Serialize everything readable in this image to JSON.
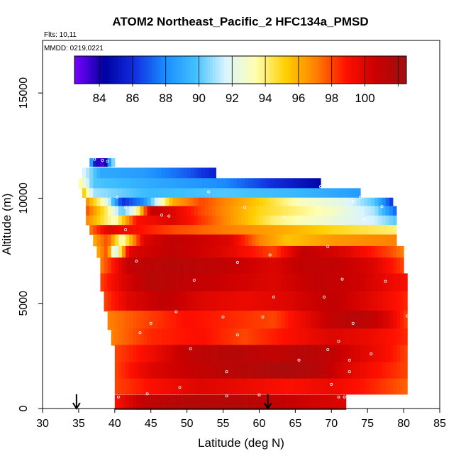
{
  "chart_data": {
    "type": "heatmap",
    "title": "ATOM2 Northeast_Pacific_2 HFC134a_PMSD",
    "notes": {
      "flights": "Flts: 10,11",
      "dates": "MMDD: 0219,0221"
    },
    "xlabel": "Latitude (deg N)",
    "ylabel": "Altitude (m)",
    "xlim": [
      30,
      85
    ],
    "ylim": [
      0,
      17500
    ],
    "x_ticks": [
      30,
      35,
      40,
      45,
      50,
      55,
      60,
      65,
      70,
      75,
      80,
      85
    ],
    "x_tick_labels": [
      "30",
      "35",
      "40",
      "45",
      "50",
      "55",
      "60",
      "65",
      "70",
      "75",
      "80",
      "85"
    ],
    "y_ticks": [
      0,
      5000,
      10000,
      15000
    ],
    "y_tick_labels": [
      "0",
      "5000",
      "10000",
      "15000"
    ],
    "colorbar": {
      "range": [
        82.5,
        102.5
      ],
      "ticks": [
        84,
        86,
        88,
        90,
        92,
        94,
        96,
        98,
        100
      ],
      "tick_labels": [
        "84",
        "86",
        "88",
        "90",
        "92",
        "94",
        "96",
        "98",
        "100"
      ],
      "colors": [
        "#7a00ff",
        "#0000a0",
        "#1030e0",
        "#1a8cff",
        "#40c0ff",
        "#d8f4ff",
        "#ffffb0",
        "#ffd000",
        "#ff8000",
        "#ff1000",
        "#c80000",
        "#a01010"
      ]
    },
    "profile_markers_latitude": [
      34.7,
      61.2
    ],
    "layers": [
      {
        "z": 11700,
        "h": 400,
        "x0": 36.5,
        "x1": 40.0,
        "pts": [
          [
            36.5,
            90
          ],
          [
            37.5,
            84
          ],
          [
            38.5,
            83
          ],
          [
            39.5,
            90
          ],
          [
            40.0,
            91
          ]
        ]
      },
      {
        "z": 11200,
        "h": 500,
        "x0": 35.5,
        "x1": 54.0,
        "pts": [
          [
            35.5,
            92
          ],
          [
            38,
            89
          ],
          [
            44,
            88.5
          ],
          [
            50,
            87
          ],
          [
            54,
            85.5
          ]
        ]
      },
      {
        "z": 10700,
        "h": 500,
        "x0": 35.0,
        "x1": 68.5,
        "pts": [
          [
            35,
            94
          ],
          [
            37,
            90
          ],
          [
            45,
            89
          ],
          [
            55,
            88
          ],
          [
            62,
            86
          ],
          [
            68.5,
            84.5
          ]
        ]
      },
      {
        "z": 10250,
        "h": 450,
        "x0": 35.5,
        "x1": 74.0,
        "pts": [
          [
            35.5,
            96
          ],
          [
            37,
            91
          ],
          [
            45,
            89.5
          ],
          [
            55,
            90
          ],
          [
            65,
            89.5
          ],
          [
            74,
            88.5
          ]
        ]
      },
      {
        "z": 9800,
        "h": 450,
        "x0": 36.0,
        "x1": 78.5,
        "pts": [
          [
            36,
            97
          ],
          [
            39,
            92
          ],
          [
            41,
            86
          ],
          [
            44,
            88
          ],
          [
            48,
            96
          ],
          [
            52,
            98
          ],
          [
            58,
            96
          ],
          [
            66,
            93
          ],
          [
            72,
            92
          ],
          [
            76,
            90
          ],
          [
            78.5,
            86
          ]
        ]
      },
      {
        "z": 9400,
        "h": 450,
        "x0": 36.0,
        "x1": 79.0,
        "pts": [
          [
            36,
            98
          ],
          [
            39,
            94
          ],
          [
            41,
            90
          ],
          [
            43,
            93
          ],
          [
            45,
            101
          ],
          [
            48,
            100
          ],
          [
            52,
            98
          ],
          [
            60,
            95
          ],
          [
            70,
            93
          ],
          [
            76,
            91
          ],
          [
            79,
            87
          ]
        ]
      },
      {
        "z": 8950,
        "h": 450,
        "x0": 36.0,
        "x1": 79.0,
        "pts": [
          [
            36,
            97
          ],
          [
            40,
            93
          ],
          [
            43,
            99
          ],
          [
            48,
            100
          ],
          [
            55,
            97
          ],
          [
            62,
            94
          ],
          [
            70,
            92.5
          ],
          [
            76,
            91.5
          ],
          [
            79,
            90
          ]
        ]
      },
      {
        "z": 8500,
        "h": 450,
        "x0": 36.5,
        "x1": 79.0,
        "pts": [
          [
            36.5,
            97
          ],
          [
            39,
            100
          ],
          [
            43,
            99
          ],
          [
            48,
            98
          ],
          [
            56,
            97
          ],
          [
            64,
            96
          ],
          [
            70,
            95
          ],
          [
            79,
            94
          ]
        ]
      },
      {
        "z": 8000,
        "h": 550,
        "x0": 37.0,
        "x1": 79.0,
        "pts": [
          [
            37,
            96
          ],
          [
            39,
            98
          ],
          [
            41,
            93
          ],
          [
            44,
            100
          ],
          [
            48,
            101
          ],
          [
            56,
            100
          ],
          [
            60,
            97
          ],
          [
            64,
            95.5
          ],
          [
            70,
            96.5
          ],
          [
            79,
            97
          ]
        ]
      },
      {
        "z": 7450,
        "h": 550,
        "x0": 37.5,
        "x1": 80.0,
        "pts": [
          [
            37.5,
            96
          ],
          [
            39,
            98
          ],
          [
            40,
            91
          ],
          [
            42,
            100
          ],
          [
            48,
            101
          ],
          [
            55,
            100
          ],
          [
            62,
            98
          ],
          [
            66,
            101
          ],
          [
            72,
            100
          ],
          [
            78,
            98
          ],
          [
            80,
            97
          ]
        ]
      },
      {
        "z": 6800,
        "h": 750,
        "x0": 38.0,
        "x1": 80.0,
        "pts": [
          [
            38,
            97
          ],
          [
            40,
            99
          ],
          [
            42,
            101
          ],
          [
            48,
            101.5
          ],
          [
            55,
            101
          ],
          [
            62,
            100
          ],
          [
            66,
            101
          ],
          [
            70,
            101
          ],
          [
            76,
            100
          ],
          [
            80,
            98
          ]
        ]
      },
      {
        "z": 6000,
        "h": 850,
        "x0": 38.0,
        "x1": 80.5,
        "pts": [
          [
            38,
            98
          ],
          [
            41,
            100
          ],
          [
            45,
            101.5
          ],
          [
            50,
            101
          ],
          [
            56,
            100.5
          ],
          [
            62,
            100
          ],
          [
            68,
            101
          ],
          [
            74,
            100.5
          ],
          [
            80.5,
            99
          ]
        ]
      },
      {
        "z": 5100,
        "h": 950,
        "x0": 38.5,
        "x1": 80.5,
        "pts": [
          [
            38.5,
            98
          ],
          [
            42,
            100
          ],
          [
            47,
            101
          ],
          [
            52,
            100
          ],
          [
            58,
            99.5
          ],
          [
            64,
            100
          ],
          [
            70,
            101
          ],
          [
            75,
            100
          ],
          [
            80.5,
            98.5
          ]
        ]
      },
      {
        "z": 4200,
        "h": 900,
        "x0": 39.0,
        "x1": 80.5,
        "pts": [
          [
            39,
            97
          ],
          [
            44,
            98
          ],
          [
            50,
            99
          ],
          [
            56,
            98.5
          ],
          [
            62,
            98
          ],
          [
            66,
            99.5
          ],
          [
            70,
            101
          ],
          [
            74,
            101.5
          ],
          [
            78,
            100
          ],
          [
            80.5,
            98
          ]
        ]
      },
      {
        "z": 3400,
        "h": 800,
        "x0": 39.5,
        "x1": 80.5,
        "pts": [
          [
            39.5,
            97
          ],
          [
            45,
            98.5
          ],
          [
            52,
            99
          ],
          [
            58,
            98
          ],
          [
            64,
            99
          ],
          [
            70,
            100
          ],
          [
            75,
            99.5
          ],
          [
            80.5,
            98.5
          ]
        ]
      },
      {
        "z": 2600,
        "h": 850,
        "x0": 40.0,
        "x1": 80.5,
        "pts": [
          [
            40,
            98
          ],
          [
            44,
            99
          ],
          [
            50,
            101
          ],
          [
            56,
            101.5
          ],
          [
            62,
            101
          ],
          [
            66,
            101.5
          ],
          [
            70,
            101
          ],
          [
            74,
            100
          ],
          [
            78,
            99
          ],
          [
            80.5,
            98
          ]
        ]
      },
      {
        "z": 1800,
        "h": 800,
        "x0": 40.0,
        "x1": 80.5,
        "pts": [
          [
            40,
            98
          ],
          [
            45,
            100
          ],
          [
            52,
            101
          ],
          [
            58,
            101.5
          ],
          [
            64,
            102
          ],
          [
            68,
            101.5
          ],
          [
            72,
            100
          ],
          [
            76,
            99
          ],
          [
            80.5,
            98
          ]
        ]
      },
      {
        "z": 1050,
        "h": 750,
        "x0": 40.0,
        "x1": 80.5,
        "pts": [
          [
            40,
            98
          ],
          [
            45,
            99
          ],
          [
            52,
            100
          ],
          [
            58,
            99.5
          ],
          [
            64,
            99
          ],
          [
            70,
            99.5
          ],
          [
            76,
            98.5
          ],
          [
            80.5,
            97.5
          ]
        ]
      },
      {
        "z": 300,
        "h": 700,
        "x0": 40.0,
        "x1": 72.0,
        "pts": [
          [
            40,
            99
          ],
          [
            44,
            101
          ],
          [
            50,
            101.5
          ],
          [
            56,
            101.5
          ],
          [
            62,
            101
          ],
          [
            66,
            100.5
          ],
          [
            72,
            100
          ]
        ]
      }
    ],
    "sample_points": [
      [
        37.2,
        11850
      ],
      [
        38.3,
        11800
      ],
      [
        39.0,
        11750
      ],
      [
        40.3,
        10050
      ],
      [
        41.5,
        9550
      ],
      [
        46.5,
        9200
      ],
      [
        47.5,
        9150
      ],
      [
        53.0,
        10300
      ],
      [
        58.0,
        9550
      ],
      [
        63.5,
        9100
      ],
      [
        68.5,
        10550
      ],
      [
        73.0,
        9850
      ],
      [
        74.0,
        10050
      ],
      [
        74.5,
        9000
      ],
      [
        77.0,
        9600
      ],
      [
        41.5,
        8500
      ],
      [
        43.0,
        7000
      ],
      [
        57.0,
        6950
      ],
      [
        61.5,
        7300
      ],
      [
        69.5,
        7700
      ],
      [
        51.0,
        6100
      ],
      [
        71.5,
        6150
      ],
      [
        77.5,
        6050
      ],
      [
        62.0,
        5300
      ],
      [
        69.0,
        5300
      ],
      [
        48.5,
        4600
      ],
      [
        45.0,
        4050
      ],
      [
        55.0,
        4350
      ],
      [
        60.5,
        4350
      ],
      [
        73.0,
        4050
      ],
      [
        80.5,
        4400
      ],
      [
        43.5,
        3600
      ],
      [
        57.0,
        3500
      ],
      [
        71.0,
        3200
      ],
      [
        50.5,
        2850
      ],
      [
        69.5,
        2800
      ],
      [
        75.5,
        2600
      ],
      [
        65.5,
        2300
      ],
      [
        72.5,
        2300
      ],
      [
        55.5,
        1750
      ],
      [
        72.5,
        1750
      ],
      [
        49.0,
        1000
      ],
      [
        70.0,
        1150
      ],
      [
        81.0,
        1400
      ],
      [
        44.5,
        700
      ],
      [
        60.0,
        650
      ],
      [
        71.0,
        550
      ],
      [
        71.8,
        550
      ],
      [
        40.5,
        550
      ],
      [
        55.5,
        600
      ]
    ]
  }
}
